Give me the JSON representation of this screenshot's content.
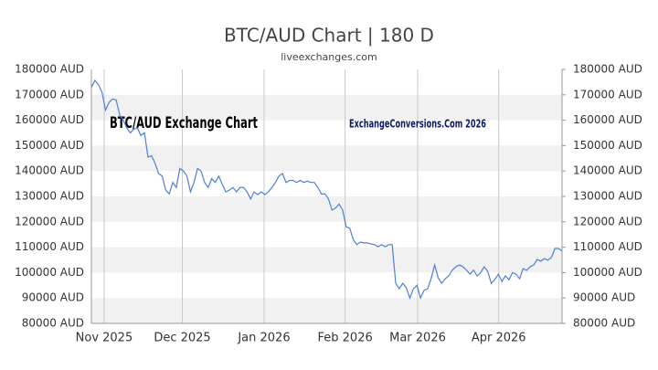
{
  "chart_data": {
    "type": "line",
    "title": "BTC/AUD Chart | 180 D",
    "subtitle": "liveexchanges.com",
    "annotations": [
      "BTC/AUD Exchange Chart",
      "ExchangeConversions.Com 2026"
    ],
    "series": [
      {
        "name": "BTC/AUD",
        "color": "#4f7fd6",
        "values": [
          173000,
          175700,
          174000,
          171000,
          164000,
          167000,
          168400,
          168000,
          162000,
          160000,
          157000,
          155000,
          156500,
          157000,
          154000,
          155000,
          145500,
          146000,
          143000,
          139000,
          138000,
          132500,
          131000,
          135500,
          133500,
          141000,
          140000,
          138000,
          131800,
          135500,
          141000,
          140000,
          135500,
          133500,
          137000,
          135500,
          138000,
          134700,
          131800,
          132500,
          133500,
          131800,
          133500,
          133500,
          131800,
          129000,
          131800,
          130700,
          131800,
          130700,
          131800,
          133500,
          135500,
          138000,
          139000,
          135500,
          136300,
          136300,
          135500,
          136300,
          135500,
          136000,
          135500,
          135500,
          133500,
          131000,
          131000,
          129000,
          124600,
          125400,
          127000,
          124600,
          118000,
          117500,
          113000,
          111000,
          112000,
          111700,
          111700,
          111300,
          111000,
          110200,
          111000,
          110200,
          111000,
          111000,
          95800,
          93600,
          95800,
          94000,
          90000,
          93600,
          95000,
          90000,
          93000,
          93600,
          97600,
          103000,
          98000,
          95800,
          97600,
          98700,
          101000,
          102300,
          103000,
          102300,
          101000,
          99400,
          101000,
          98700,
          100000,
          102300,
          100500,
          95800,
          97200,
          99400,
          96500,
          98700,
          97200,
          100000,
          99400,
          97600,
          101600,
          100900,
          102300,
          103000,
          105200,
          104500,
          105500,
          104900,
          106000,
          109500,
          109500,
          108500
        ]
      }
    ],
    "xlim": [
      0,
      133
    ],
    "xticks": [
      {
        "value": 3.6,
        "label": "Nov 2025"
      },
      {
        "value": 25.7,
        "label": "Dec 2025"
      },
      {
        "value": 48.8,
        "label": "Jan 2026"
      },
      {
        "value": 71.7,
        "label": "Feb 2026"
      },
      {
        "value": 92.2,
        "label": "Mar 2026"
      },
      {
        "value": 115.1,
        "label": "Apr 2026"
      }
    ],
    "ylim": [
      80000,
      180000
    ],
    "yticks": [
      {
        "value": 80000,
        "label": "80000 AUD"
      },
      {
        "value": 90000,
        "label": "90000 AUD"
      },
      {
        "value": 100000,
        "label": "100000 AUD"
      },
      {
        "value": 110000,
        "label": "110000 AUD"
      },
      {
        "value": 120000,
        "label": "120000 AUD"
      },
      {
        "value": 130000,
        "label": "130000 AUD"
      },
      {
        "value": 140000,
        "label": "140000 AUD"
      },
      {
        "value": 150000,
        "label": "150000 AUD"
      },
      {
        "value": 160000,
        "label": "160000 AUD"
      },
      {
        "value": 170000,
        "label": "170000 AUD"
      },
      {
        "value": 180000,
        "label": "180000 AUD"
      }
    ],
    "grid": true
  }
}
